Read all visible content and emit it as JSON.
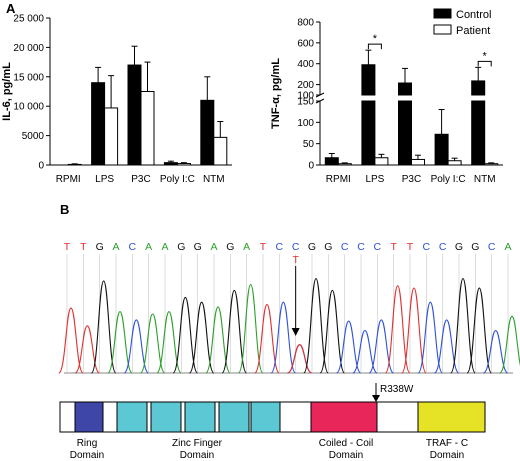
{
  "panel_labels": {
    "a": "A",
    "b": "B"
  },
  "chart_data": [
    {
      "type": "bar",
      "ylabel": "IL-6, pg/mL",
      "xlabel": "",
      "ylim": [
        0,
        25000
      ],
      "yticks": [
        0,
        5000,
        10000,
        15000,
        20000,
        25000
      ],
      "ytick_labels": [
        "0",
        "5000",
        "10 000",
        "15 000",
        "20 000",
        "25 000"
      ],
      "categories": [
        "RPMI",
        "LPS",
        "P3C",
        "Poly I:C",
        "NTM"
      ],
      "series": [
        {
          "name": "Control",
          "values": [
            0,
            14000,
            17000,
            400,
            11000
          ],
          "errors": [
            0,
            2600,
            3200,
            250,
            4000
          ],
          "fill": "#000000"
        },
        {
          "name": "Patient",
          "values": [
            100,
            9700,
            12500,
            250,
            4700
          ],
          "errors": [
            100,
            5500,
            5000,
            150,
            2700
          ],
          "fill": "#ffffff"
        }
      ]
    },
    {
      "type": "bar",
      "ylabel": "TNF-α, pg/mL",
      "xlabel": "",
      "broken_axis": true,
      "upper_range": [
        100,
        800
      ],
      "upper_ticks": [
        100,
        200,
        400,
        600,
        800
      ],
      "lower_range": [
        0,
        150
      ],
      "lower_ticks": [
        0,
        50,
        100,
        150
      ],
      "categories": [
        "RPMI",
        "LPS",
        "P3C",
        "Poly I:C",
        "NTM"
      ],
      "series": [
        {
          "name": "Control",
          "values": [
            17,
            390,
            215,
            72,
            235
          ],
          "errors": [
            10,
            140,
            140,
            58,
            130
          ],
          "fill": "#000000"
        },
        {
          "name": "Patient",
          "values": [
            3,
            17,
            13,
            10,
            3
          ],
          "errors": [
            2,
            8,
            10,
            6,
            2
          ],
          "fill": "#ffffff"
        }
      ],
      "significance": [
        {
          "category": "LPS",
          "label": "*"
        },
        {
          "category": "NTM",
          "label": "*"
        }
      ],
      "legend_position": "top-right"
    }
  ],
  "sequence": {
    "bases": [
      "T",
      "T",
      "G",
      "A",
      "C",
      "A",
      "A",
      "G",
      "G",
      "A",
      "G",
      "A",
      "T",
      "C",
      "C",
      "G",
      "G",
      "C",
      "C",
      "C",
      "T",
      "T",
      "C",
      "C",
      "G",
      "G",
      "C",
      "A"
    ],
    "variant_base": "T",
    "variant_index": 14
  },
  "base_colors": {
    "A": "#2ca02c",
    "C": "#3050d8",
    "G": "#111111",
    "T": "#e03030"
  },
  "mutation_label": "R338W",
  "domains": [
    {
      "name": "Ring\nDomain",
      "color": "#3e46a8"
    },
    {
      "name": "Zinc Finger\nDomain",
      "color": "#5bc8d4"
    },
    {
      "name": "Coiled - Coil\nDomain",
      "color": "#e8265a"
    },
    {
      "name": "TRAF - C\nDomain",
      "color": "#e6e226"
    }
  ]
}
